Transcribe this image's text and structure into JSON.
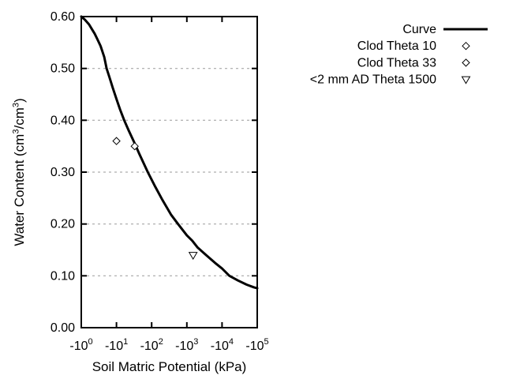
{
  "chart_data": {
    "type": "line",
    "title": "",
    "xlabel": "Soil Matric Potential (kPa)",
    "ylabel": "Water Content (cm³/cm³)",
    "ylabel_parts": [
      {
        "text": "Water Content (cm"
      },
      {
        "text": "3",
        "sup": true
      },
      {
        "text": "/cm"
      },
      {
        "text": "3",
        "sup": true
      },
      {
        "text": ")"
      }
    ],
    "x_axis": {
      "scale": "log",
      "tick_base": "-10",
      "tick_exponents": [
        "0",
        "1",
        "2",
        "3",
        "4",
        "5"
      ],
      "range_decades": [
        0,
        5
      ]
    },
    "y_axis": {
      "min": 0.0,
      "max": 0.6,
      "tick_labels": [
        "0.00",
        "0.10",
        "0.20",
        "0.30",
        "0.40",
        "0.50",
        "0.60"
      ]
    },
    "grid": {
      "horizontal": true,
      "vertical": false,
      "style": "dashed"
    },
    "legend_position": "top-right-outside",
    "series": [
      {
        "name": "Curve",
        "kind": "line",
        "marker": null,
        "points": [
          [
            -1.0,
            0.6
          ],
          [
            -1.26,
            0.594
          ],
          [
            -1.66,
            0.585
          ],
          [
            -2.0,
            0.576
          ],
          [
            -2.4,
            0.567
          ],
          [
            -2.8,
            0.558
          ],
          [
            -3.55,
            0.543
          ],
          [
            -4.5,
            0.522
          ],
          [
            -5.25,
            0.5
          ],
          [
            -6.3,
            0.483
          ],
          [
            -7.9,
            0.462
          ],
          [
            -10,
            0.441
          ],
          [
            -12.6,
            0.421
          ],
          [
            -16.6,
            0.4
          ],
          [
            -22.4,
            0.38
          ],
          [
            -31.6,
            0.358
          ],
          [
            -44.7,
            0.335
          ],
          [
            -77.6,
            0.3
          ],
          [
            -126,
            0.272
          ],
          [
            -200,
            0.247
          ],
          [
            -355,
            0.218
          ],
          [
            -562,
            0.2
          ],
          [
            -1000,
            0.178
          ],
          [
            -1410,
            0.168
          ],
          [
            -2000,
            0.155
          ],
          [
            -3550,
            0.14
          ],
          [
            -6310,
            0.125
          ],
          [
            -10000,
            0.114
          ],
          [
            -16200,
            0.1
          ],
          [
            -28200,
            0.091
          ],
          [
            -50100,
            0.083
          ],
          [
            -79400,
            0.078
          ],
          [
            -100000,
            0.076
          ]
        ]
      },
      {
        "name": "Clod Theta 10",
        "kind": "scatter",
        "marker": "diamond",
        "points": [
          [
            -10,
            0.36
          ]
        ]
      },
      {
        "name": "Clod Theta 33",
        "kind": "scatter",
        "marker": "diamond",
        "points": [
          [
            -33,
            0.35
          ]
        ]
      },
      {
        "name": "<2 mm AD Theta 1500",
        "kind": "scatter",
        "marker": "triangle-down",
        "points": [
          [
            -1500,
            0.14
          ]
        ]
      }
    ]
  },
  "colors": {
    "foreground": "#000000",
    "background": "#ffffff",
    "grid": "#9a9a9a"
  }
}
